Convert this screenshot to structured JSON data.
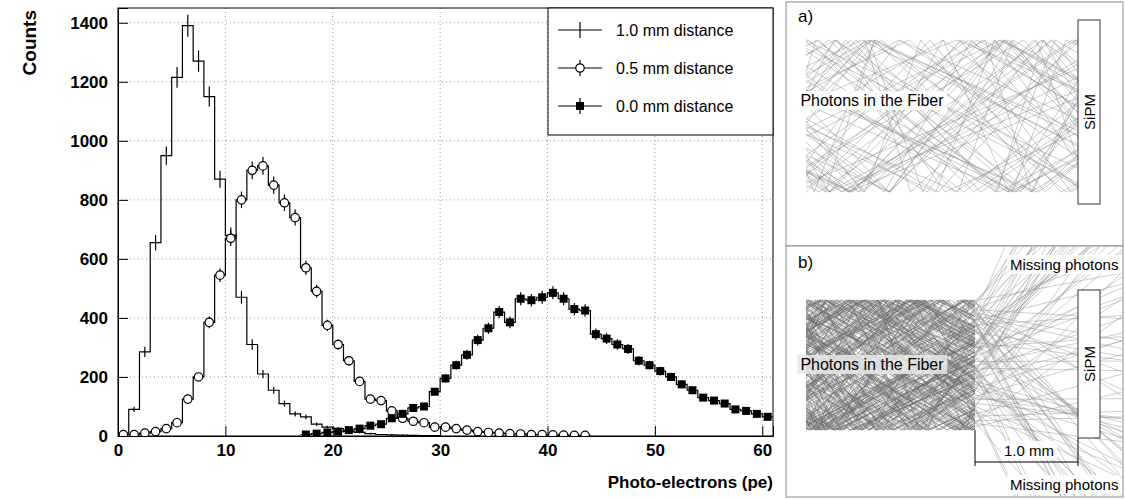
{
  "chart_data": {
    "type": "histogram",
    "x_label": "Photo-electrons (pe)",
    "y_label": "Counts",
    "xlim": [
      0,
      61
    ],
    "ylim": [
      0,
      1450
    ],
    "xticks": [
      0,
      10,
      20,
      30,
      40,
      50,
      60
    ],
    "yticks": [
      0,
      200,
      400,
      600,
      800,
      1000,
      1200,
      1400
    ],
    "grid": true,
    "legend": "upper right",
    "bins": [
      0,
      1,
      2,
      3,
      4,
      5,
      6,
      7,
      8,
      9,
      10,
      11,
      12,
      13,
      14,
      15,
      16,
      17,
      18,
      19,
      20,
      21,
      22,
      23,
      24,
      25,
      26,
      27,
      28,
      29,
      30,
      31,
      32,
      33,
      34,
      35,
      36,
      37,
      38,
      39,
      40,
      41,
      42,
      43,
      44,
      45,
      46,
      47,
      48,
      49,
      50,
      51,
      52,
      53,
      54,
      55,
      56,
      57,
      58,
      59,
      60,
      61
    ],
    "series": [
      {
        "name": "1.0 mm distance",
        "color": "#000000",
        "marker": "none",
        "line_style": "step",
        "values": [
          10,
          90,
          285,
          655,
          950,
          1215,
          1390,
          1270,
          1150,
          870,
          680,
          470,
          310,
          210,
          155,
          110,
          75,
          65,
          40,
          30,
          25,
          15,
          12,
          8,
          5,
          4,
          3,
          2,
          1,
          1,
          null,
          null,
          null,
          null,
          null,
          null,
          null,
          null,
          null,
          null,
          null,
          null,
          null,
          null,
          null,
          null,
          null,
          null,
          null,
          null,
          null,
          null,
          null,
          null,
          null,
          null,
          null,
          null,
          null,
          null,
          null
        ],
        "errors": [
          3,
          9,
          17,
          26,
          31,
          35,
          37,
          36,
          34,
          29,
          26,
          22,
          18,
          14,
          12,
          10,
          9,
          8,
          6,
          5,
          5,
          4,
          3,
          3,
          2,
          2,
          2,
          1,
          1,
          1,
          null,
          null,
          null,
          null,
          null,
          null,
          null,
          null,
          null,
          null,
          null,
          null,
          null,
          null,
          null,
          null,
          null,
          null,
          null,
          null,
          null,
          null,
          null,
          null,
          null,
          null,
          null,
          null,
          null,
          null,
          null
        ]
      },
      {
        "name": "0.5 mm distance",
        "color": "#000000",
        "marker": "circle",
        "line_style": "step",
        "values": [
          5,
          5,
          10,
          15,
          25,
          45,
          125,
          200,
          385,
          545,
          670,
          800,
          900,
          915,
          850,
          790,
          740,
          570,
          490,
          375,
          310,
          255,
          185,
          125,
          120,
          85,
          60,
          50,
          45,
          30,
          30,
          25,
          20,
          15,
          12,
          10,
          8,
          7,
          5,
          5,
          4,
          3,
          2,
          2,
          null,
          null,
          null,
          null,
          null,
          null,
          null,
          null,
          null,
          null,
          null,
          null,
          null,
          null,
          null,
          null,
          null
        ],
        "errors": [
          2,
          2,
          3,
          4,
          5,
          7,
          11,
          14,
          20,
          23,
          26,
          28,
          30,
          30,
          29,
          28,
          27,
          24,
          22,
          19,
          18,
          16,
          14,
          11,
          11,
          9,
          8,
          7,
          7,
          5,
          5,
          5,
          4,
          4,
          3,
          3,
          3,
          3,
          2,
          2,
          2,
          2,
          1,
          1,
          null,
          null,
          null,
          null,
          null,
          null,
          null,
          null,
          null,
          null,
          null,
          null,
          null,
          null,
          null,
          null,
          null
        ]
      },
      {
        "name": "0.0 mm distance",
        "color": "#000000",
        "marker": "square",
        "line_style": "step",
        "values": [
          null,
          null,
          null,
          null,
          null,
          null,
          null,
          null,
          null,
          null,
          null,
          null,
          null,
          null,
          null,
          null,
          null,
          5,
          8,
          12,
          15,
          20,
          25,
          35,
          40,
          60,
          75,
          95,
          100,
          150,
          195,
          240,
          275,
          325,
          365,
          420,
          385,
          465,
          460,
          470,
          485,
          465,
          430,
          425,
          345,
          330,
          310,
          295,
          255,
          240,
          220,
          200,
          175,
          155,
          130,
          120,
          110,
          90,
          85,
          75,
          65
        ],
        "errors": [
          null,
          null,
          null,
          null,
          null,
          null,
          null,
          null,
          null,
          null,
          null,
          null,
          null,
          null,
          null,
          null,
          null,
          2,
          3,
          3,
          4,
          4,
          5,
          6,
          6,
          8,
          9,
          10,
          10,
          12,
          14,
          15,
          17,
          18,
          19,
          20,
          20,
          22,
          21,
          22,
          22,
          22,
          21,
          21,
          19,
          18,
          18,
          17,
          16,
          15,
          15,
          14,
          13,
          12,
          11,
          11,
          10,
          9,
          9,
          9,
          8
        ]
      }
    ]
  },
  "diagram": {
    "panels": [
      {
        "label": "a)",
        "fiber_label": "Photons in the Fiber",
        "detector_label": "SiPM"
      },
      {
        "label": "b)",
        "fiber_label": "Photons in the Fiber",
        "detector_label": "SiPM",
        "missing_labels": [
          "Missing photons",
          "Missing photons"
        ],
        "distance_label": "1.0 mm"
      }
    ]
  }
}
